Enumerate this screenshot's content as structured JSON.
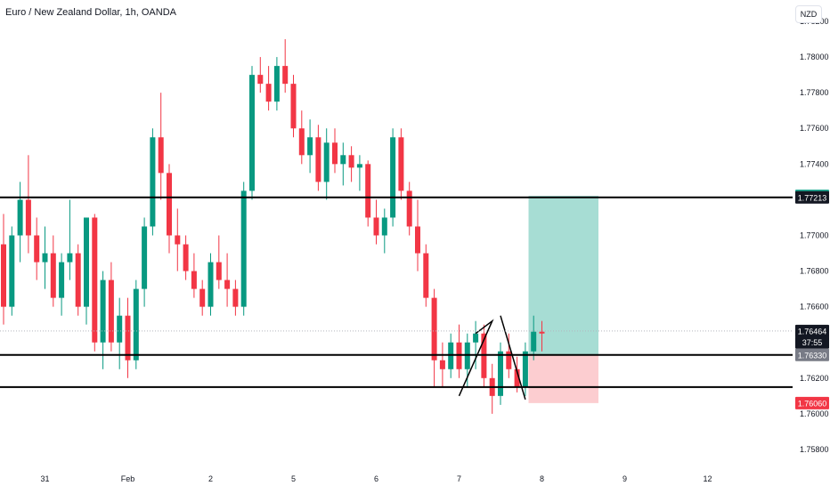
{
  "header": {
    "title": "Euro / New Zealand Dollar, 1h, OANDA",
    "currency_button": "NZD"
  },
  "chart_data": {
    "type": "candlestick",
    "symbol": "Euro / New Zealand Dollar",
    "interval": "1h",
    "source": "OANDA",
    "price_axis": {
      "min": 1.757,
      "max": 1.7822,
      "ticks": [
        "1.78200",
        "1.78000",
        "1.77800",
        "1.77600",
        "1.77400",
        "1.77000",
        "1.76800",
        "1.76600",
        "1.76200",
        "1.76000",
        "1.75800"
      ]
    },
    "time_axis": {
      "labels": [
        {
          "label": "31",
          "bar": 5
        },
        {
          "label": "Feb",
          "bar": 15
        },
        {
          "label": "2",
          "bar": 25
        },
        {
          "label": "5",
          "bar": 35
        },
        {
          "label": "6",
          "bar": 45
        },
        {
          "label": "7",
          "bar": 55
        },
        {
          "label": "8",
          "bar": 65
        },
        {
          "label": "9",
          "bar": 75
        },
        {
          "label": "12",
          "bar": 85
        }
      ]
    },
    "candles": [
      [
        1.7695,
        1.7712,
        1.765,
        1.766
      ],
      [
        1.766,
        1.7705,
        1.7655,
        1.77
      ],
      [
        1.77,
        1.773,
        1.7685,
        1.772
      ],
      [
        1.772,
        1.7745,
        1.769,
        1.77
      ],
      [
        1.77,
        1.771,
        1.7675,
        1.7685
      ],
      [
        1.7685,
        1.7705,
        1.767,
        1.769
      ],
      [
        1.769,
        1.77,
        1.766,
        1.7665
      ],
      [
        1.7665,
        1.769,
        1.7655,
        1.7685
      ],
      [
        1.7685,
        1.772,
        1.7675,
        1.769
      ],
      [
        1.769,
        1.7695,
        1.7655,
        1.766
      ],
      [
        1.766,
        1.771,
        1.765,
        1.771
      ],
      [
        1.771,
        1.7712,
        1.7635,
        1.764
      ],
      [
        1.764,
        1.768,
        1.7625,
        1.7675
      ],
      [
        1.7675,
        1.7685,
        1.7635,
        1.764
      ],
      [
        1.764,
        1.7665,
        1.7625,
        1.7655
      ],
      [
        1.7655,
        1.7665,
        1.762,
        1.763
      ],
      [
        1.763,
        1.7675,
        1.7625,
        1.767
      ],
      [
        1.767,
        1.771,
        1.766,
        1.7705
      ],
      [
        1.7705,
        1.776,
        1.77,
        1.7755
      ],
      [
        1.7755,
        1.778,
        1.772,
        1.7735
      ],
      [
        1.7735,
        1.774,
        1.769,
        1.77
      ],
      [
        1.77,
        1.7715,
        1.768,
        1.7695
      ],
      [
        1.7695,
        1.77,
        1.7675,
        1.768
      ],
      [
        1.768,
        1.769,
        1.7665,
        1.767
      ],
      [
        1.767,
        1.7675,
        1.7655,
        1.766
      ],
      [
        1.766,
        1.769,
        1.7655,
        1.7685
      ],
      [
        1.7685,
        1.77,
        1.767,
        1.7675
      ],
      [
        1.7675,
        1.769,
        1.766,
        1.767
      ],
      [
        1.767,
        1.7675,
        1.7655,
        1.766
      ],
      [
        1.766,
        1.773,
        1.7655,
        1.7725
      ],
      [
        1.7725,
        1.7795,
        1.772,
        1.779
      ],
      [
        1.779,
        1.78,
        1.778,
        1.7785
      ],
      [
        1.7785,
        1.7795,
        1.777,
        1.7775
      ],
      [
        1.7775,
        1.78,
        1.777,
        1.7795
      ],
      [
        1.7795,
        1.781,
        1.778,
        1.7785
      ],
      [
        1.7785,
        1.779,
        1.7755,
        1.776
      ],
      [
        1.776,
        1.777,
        1.774,
        1.7745
      ],
      [
        1.7745,
        1.7765,
        1.7735,
        1.7755
      ],
      [
        1.7755,
        1.7762,
        1.7725,
        1.773
      ],
      [
        1.773,
        1.776,
        1.772,
        1.7752
      ],
      [
        1.7752,
        1.776,
        1.7735,
        1.774
      ],
      [
        1.774,
        1.7752,
        1.7728,
        1.7745
      ],
      [
        1.7745,
        1.775,
        1.773,
        1.7738
      ],
      [
        1.7738,
        1.7745,
        1.7725,
        1.774
      ],
      [
        1.774,
        1.7742,
        1.7705,
        1.771
      ],
      [
        1.771,
        1.772,
        1.7695,
        1.77
      ],
      [
        1.77,
        1.7715,
        1.769,
        1.771
      ],
      [
        1.771,
        1.776,
        1.7705,
        1.7755
      ],
      [
        1.7755,
        1.776,
        1.772,
        1.7725
      ],
      [
        1.7725,
        1.773,
        1.77,
        1.7705
      ],
      [
        1.7705,
        1.772,
        1.768,
        1.769
      ],
      [
        1.769,
        1.7695,
        1.766,
        1.7665
      ],
      [
        1.7665,
        1.767,
        1.7615,
        1.763
      ],
      [
        1.763,
        1.764,
        1.7615,
        1.7625
      ],
      [
        1.7625,
        1.7645,
        1.762,
        1.764
      ],
      [
        1.764,
        1.765,
        1.762,
        1.7625
      ],
      [
        1.7625,
        1.7645,
        1.7615,
        1.764
      ],
      [
        1.764,
        1.7652,
        1.7625,
        1.7645
      ],
      [
        1.7645,
        1.765,
        1.7615,
        1.762
      ],
      [
        1.762,
        1.7628,
        1.76,
        1.761
      ],
      [
        1.761,
        1.764,
        1.7605,
        1.7635
      ],
      [
        1.7635,
        1.7645,
        1.762,
        1.7625
      ],
      [
        1.7625,
        1.7632,
        1.7612,
        1.7615
      ],
      [
        1.7615,
        1.764,
        1.761,
        1.7635
      ],
      [
        1.7635,
        1.7655,
        1.763,
        1.7646
      ],
      [
        1.7646,
        1.7652,
        1.7635,
        1.7645
      ]
    ],
    "horizontal_lines": [
      {
        "price": 1.77213,
        "label": "1.77213",
        "color": "#000000"
      },
      {
        "price": 1.7633,
        "label": "1.76330",
        "color": "#000000"
      },
      {
        "price": 1.7615,
        "color": "#000000"
      }
    ],
    "price_labels": [
      {
        "price": 1.77222,
        "label": "1.77222",
        "bg": "#22ab94",
        "fg": "#ffffff"
      },
      {
        "price": 1.77213,
        "label": "1.77213",
        "bg": "#131722",
        "fg": "#ffffff"
      },
      {
        "price": 1.76464,
        "label": "1.76464",
        "bg": "#131722",
        "fg": "#ffffff"
      },
      {
        "price": 1.764,
        "label": "37:55",
        "bg": "#131722",
        "fg": "#ffffff"
      },
      {
        "price": 1.7633,
        "label": "1.76330",
        "bg": "#787b86",
        "fg": "#ffffff"
      },
      {
        "price": 1.7606,
        "label": "1.76060",
        "bg": "#f23645",
        "fg": "#ffffff"
      }
    ],
    "current_price": 1.76464,
    "countdown": "37:55",
    "position": {
      "type": "long",
      "entry": 1.7633,
      "target": 1.77222,
      "stop": 1.7606
    },
    "colors": {
      "up": "#089981",
      "down": "#f23645",
      "target_zone": "rgba(34,171,148,0.40)",
      "stop_zone": "rgba(242,54,69,0.25)"
    }
  }
}
